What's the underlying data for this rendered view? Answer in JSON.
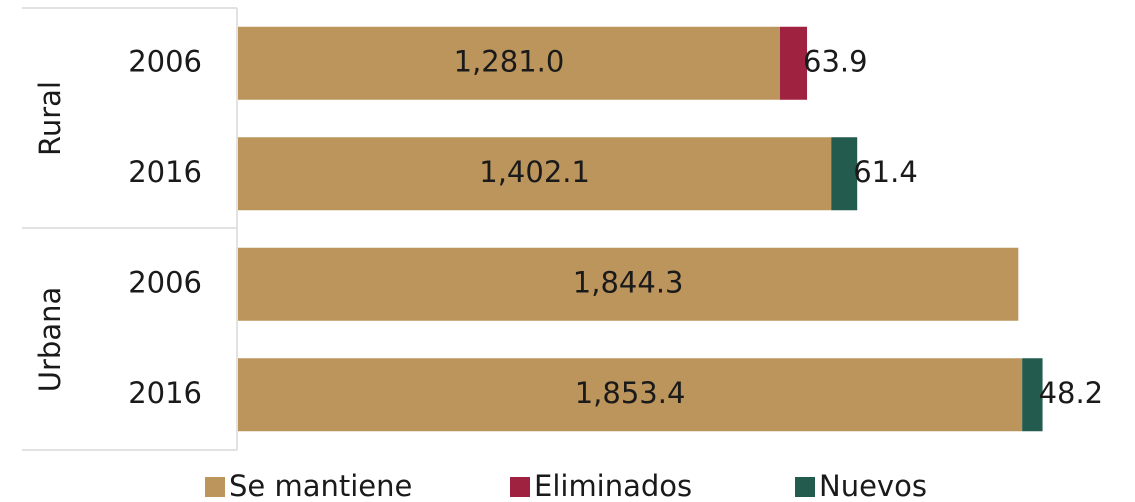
{
  "chart_data": {
    "type": "stacked-bar-horizontal",
    "groups": [
      "Rural",
      "Urbana"
    ],
    "categories": [
      "2006",
      "2016",
      "2006",
      "2016"
    ],
    "series": [
      {
        "name": "Se mantiene",
        "color": "#BC955C",
        "values": [
          1281.0,
          1402.1,
          1844.3,
          1853.4
        ],
        "value_labels": [
          "1,281.0",
          "1,402.1",
          "1,844.3",
          "1,853.4"
        ]
      },
      {
        "name": "Eliminados",
        "color": "#9F2241",
        "values": [
          63.9,
          null,
          null,
          null
        ],
        "value_labels": [
          "63.9",
          null,
          null,
          null
        ]
      },
      {
        "name": "Nuevos",
        "color": "#235B4E",
        "values": [
          null,
          61.4,
          null,
          48.2
        ],
        "value_labels": [
          null,
          "61.4",
          null,
          "48.2"
        ]
      }
    ],
    "legend": "bottom"
  }
}
